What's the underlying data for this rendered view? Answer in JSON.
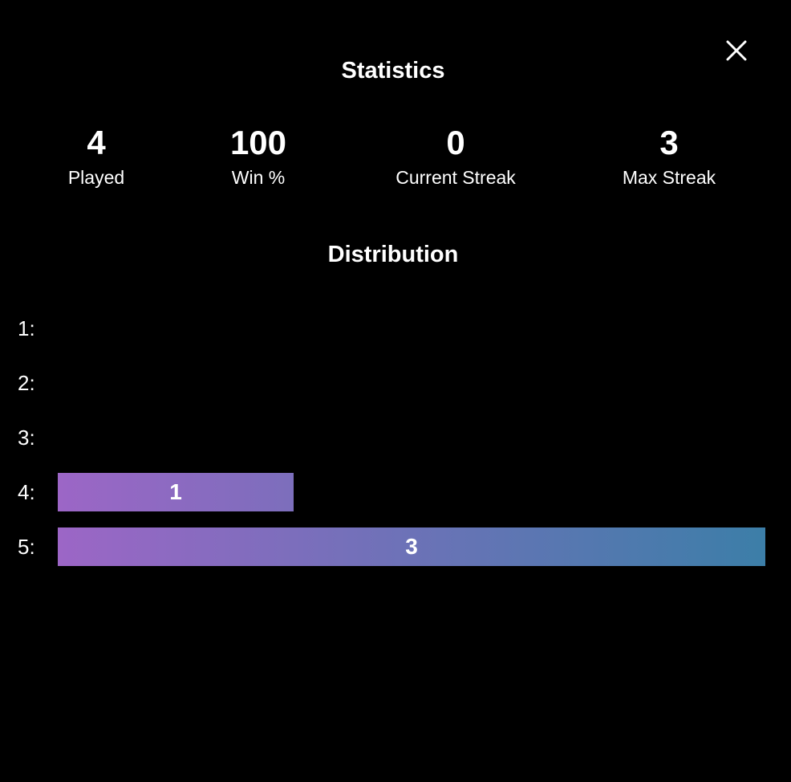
{
  "modal": {
    "title": "Statistics",
    "close_icon": "close-icon"
  },
  "stats": [
    {
      "value": "4",
      "label": "Played"
    },
    {
      "value": "100",
      "label": "Win %"
    },
    {
      "value": "0",
      "label": "Current Streak"
    },
    {
      "value": "3",
      "label": "Max Streak"
    }
  ],
  "distribution": {
    "title": "Distribution",
    "max_count": 3,
    "rows": [
      {
        "label": "1:",
        "count": 0,
        "count_label": ""
      },
      {
        "label": "2:",
        "count": 0,
        "count_label": ""
      },
      {
        "label": "3:",
        "count": 0,
        "count_label": ""
      },
      {
        "label": "4:",
        "count": 1,
        "count_label": "1"
      },
      {
        "label": "5:",
        "count": 3,
        "count_label": "3"
      }
    ]
  },
  "colors": {
    "background": "#000000",
    "text": "#ffffff",
    "bar_gradient_start": "#9c66c6",
    "bar_gradient_end": "#3c7ea8"
  }
}
